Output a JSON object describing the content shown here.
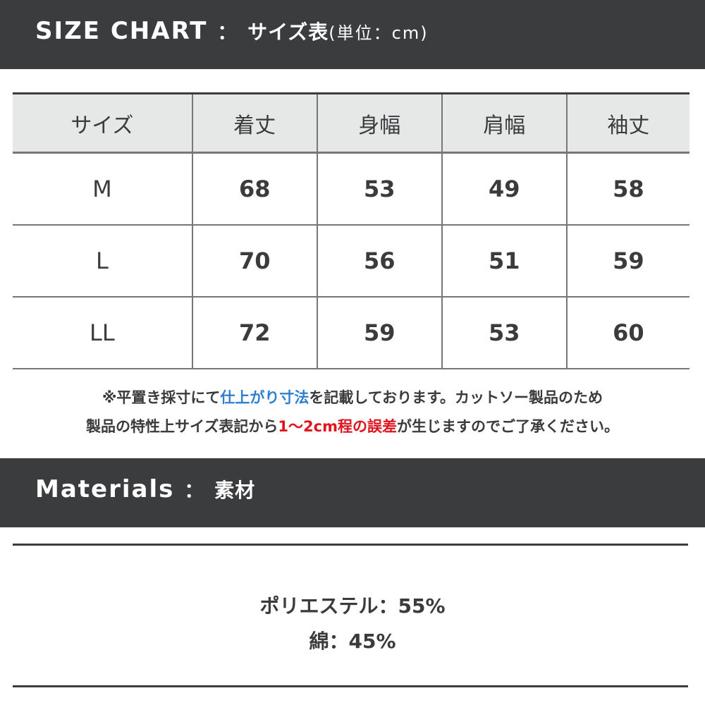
{
  "size_chart": {
    "title": "SIZE CHART",
    "separator": "：",
    "subtitle": "サイズ表",
    "unit": "(単位：cm)",
    "headers": [
      "サイズ",
      "着丈",
      "身幅",
      "肩幅",
      "袖丈"
    ],
    "rows": [
      [
        "M",
        "68",
        "53",
        "49",
        "58"
      ],
      [
        "L",
        "70",
        "56",
        "51",
        "59"
      ],
      [
        "LL",
        "72",
        "59",
        "53",
        "60"
      ]
    ]
  },
  "note": {
    "line1_a": "※平置き採寸にて",
    "line1_highlight": "仕上がり寸法",
    "line1_b": "を記載しております。カットソー製品のため",
    "line2_a": "製品の特性上サイズ表記から",
    "line2_highlight": "1〜2cm程の誤差",
    "line2_b": "が生じますのでご了承ください。",
    "highlight_colors": {
      "blue": "#2f7fd0",
      "red": "#e0141c"
    }
  },
  "materials": {
    "title": "Materials",
    "separator": "：",
    "subtitle": "素材",
    "items": [
      "ポリエステル：55%",
      "綿：45%"
    ]
  },
  "colors": {
    "header_bar": "#3b3c3e",
    "table_header_bg": "#e6e7e7"
  }
}
